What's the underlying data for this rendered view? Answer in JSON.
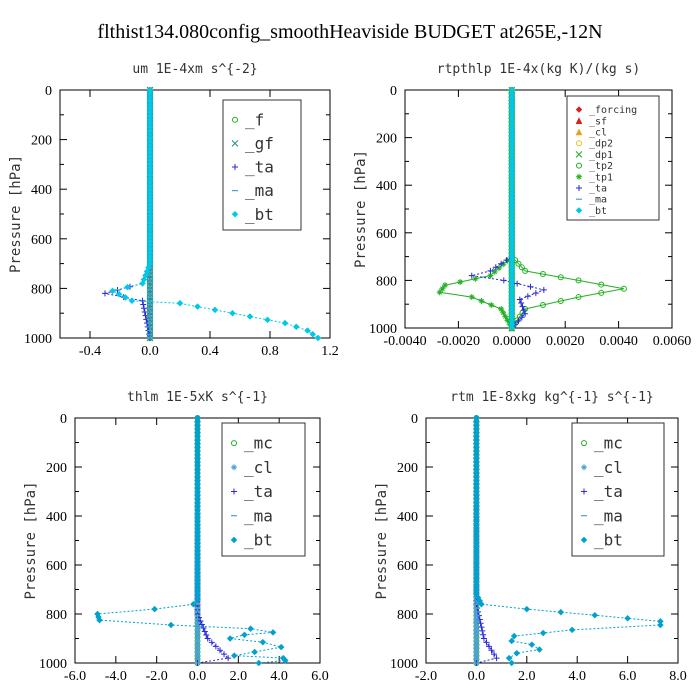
{
  "figure": {
    "title": "flthist134.080config_smoothHeaviside  BUDGET at265E,-12N"
  },
  "chart_data": [
    {
      "type": "line",
      "title": "um   1E-4xm s^{-2}",
      "ylabel": "Pressure [hPa]",
      "xlim": [
        -0.6,
        1.2
      ],
      "ylim": [
        1000,
        0
      ],
      "xticks": [
        -0.4,
        0.0,
        0.4,
        0.8,
        1.2
      ],
      "xtick_labels": [
        "-0.4",
        "0.0",
        "0.4",
        "0.8",
        "1.2"
      ],
      "yticks": [
        0,
        200,
        400,
        600,
        800,
        1000
      ],
      "ytick_labels": [
        "0",
        "200",
        "400",
        "600",
        "800",
        "1000"
      ],
      "legend_position": "top-right",
      "legend_font": 16,
      "series": [
        {
          "name": "_f",
          "color": "#22b022",
          "marker": "circle",
          "style": "solid",
          "points": [
            [
              0.0,
              0
            ],
            [
              0.0,
              1000
            ]
          ]
        },
        {
          "name": "_gf",
          "color": "#1e8f8f",
          "marker": "x",
          "style": "solid",
          "points": [
            [
              0.0,
              0
            ],
            [
              0.0,
              1000
            ]
          ]
        },
        {
          "name": "_ta",
          "color": "#2a2ad8",
          "marker": "plus",
          "style": "dotted",
          "points": [
            [
              0.0,
              0
            ],
            [
              0.0,
              700
            ],
            [
              -0.05,
              780
            ],
            [
              -0.3,
              820
            ],
            [
              -0.05,
              850
            ],
            [
              0.0,
              1000
            ]
          ]
        },
        {
          "name": "_ma",
          "color": "#4aa0d8",
          "marker": "dash",
          "style": "dashed",
          "points": [
            [
              0.0,
              0
            ],
            [
              0.0,
              1000
            ]
          ]
        },
        {
          "name": "_bt",
          "color": "#00c8e8",
          "marker": "diamond",
          "style": "dotted",
          "points": [
            [
              0.0,
              0
            ],
            [
              0.0,
              700
            ],
            [
              -0.05,
              780
            ],
            [
              -0.25,
              810
            ],
            [
              -0.12,
              850
            ],
            [
              0.2,
              860
            ],
            [
              0.55,
              900
            ],
            [
              0.9,
              940
            ],
            [
              1.05,
              970
            ],
            [
              1.12,
              1000
            ]
          ]
        }
      ]
    },
    {
      "type": "line",
      "title": "rtpthlp   1E-4x(kg K)/(kg s)",
      "ylabel": "Pressure [hPa]",
      "xlim": [
        -0.004,
        0.006
      ],
      "ylim": [
        1000,
        0
      ],
      "xticks": [
        -0.004,
        -0.002,
        0.0,
        0.002,
        0.004,
        0.006
      ],
      "xtick_labels": [
        "-0.0040",
        "-0.0020",
        "0.0000",
        "0.0020",
        "0.0040",
        "0.0060"
      ],
      "yticks": [
        0,
        200,
        400,
        600,
        800,
        1000
      ],
      "ytick_labels": [
        "0",
        "200",
        "400",
        "600",
        "800",
        "1000"
      ],
      "legend_position": "top-right",
      "legend_font": 10,
      "series": [
        {
          "name": "_forcing",
          "color": "#d82020",
          "marker": "diamond",
          "style": "solid",
          "points": [
            [
              0.0,
              0
            ],
            [
              0.0,
              1000
            ]
          ]
        },
        {
          "name": "_sf",
          "color": "#d82020",
          "marker": "triangle",
          "style": "solid",
          "points": [
            [
              0.0,
              0
            ],
            [
              0.0,
              1000
            ]
          ]
        },
        {
          "name": "_cl",
          "color": "#e8a020",
          "marker": "triangle",
          "style": "solid",
          "points": [
            [
              0.0,
              0
            ],
            [
              0.0,
              1000
            ]
          ]
        },
        {
          "name": "_dp2",
          "color": "#e8c020",
          "marker": "circle",
          "style": "solid",
          "points": [
            [
              0.0,
              0
            ],
            [
              0.0,
              1000
            ]
          ]
        },
        {
          "name": "_dp1",
          "color": "#22b022",
          "marker": "x",
          "style": "solid",
          "points": [
            [
              0.0,
              0
            ],
            [
              0.0,
              1000
            ]
          ]
        },
        {
          "name": "_tp2",
          "color": "#22b022",
          "marker": "circle",
          "style": "solid",
          "points": [
            [
              0.0,
              0
            ],
            [
              0.0,
              700
            ],
            [
              0.0005,
              760
            ],
            [
              0.0025,
              800
            ],
            [
              0.0042,
              835
            ],
            [
              0.0025,
              870
            ],
            [
              0.0005,
              920
            ],
            [
              0.0,
              1000
            ]
          ]
        },
        {
          "name": "_tp1",
          "color": "#22b022",
          "marker": "star",
          "style": "solid",
          "points": [
            [
              0.0,
              0
            ],
            [
              0.0,
              700
            ],
            [
              -0.0008,
              780
            ],
            [
              -0.0025,
              820
            ],
            [
              -0.0027,
              850
            ],
            [
              -0.0015,
              870
            ],
            [
              -0.0004,
              920
            ],
            [
              0.0,
              1000
            ]
          ]
        },
        {
          "name": "_ta",
          "color": "#2a2ad8",
          "marker": "plus",
          "style": "dotted",
          "points": [
            [
              0.0,
              0
            ],
            [
              0.0,
              700
            ],
            [
              -0.0008,
              760
            ],
            [
              -0.0015,
              780
            ],
            [
              -0.0003,
              800
            ],
            [
              0.0012,
              840
            ],
            [
              0.0003,
              880
            ],
            [
              0.0005,
              940
            ],
            [
              0.0,
              1000
            ]
          ]
        },
        {
          "name": "_ma",
          "color": "#4aa0d8",
          "marker": "dash",
          "style": "dashed",
          "points": [
            [
              0.0,
              0
            ],
            [
              0.0,
              1000
            ]
          ]
        },
        {
          "name": "_bt",
          "color": "#00c8e8",
          "marker": "diamond",
          "style": "solid",
          "points": [
            [
              0.0,
              0
            ],
            [
              0.0,
              1000
            ]
          ]
        }
      ]
    },
    {
      "type": "line",
      "title": "thlm   1E-5xK s^{-1}",
      "ylabel": "Pressure [hPa]",
      "xlim": [
        -6.0,
        6.0
      ],
      "ylim": [
        1000,
        0
      ],
      "xticks": [
        -6.0,
        -4.0,
        -2.0,
        0.0,
        2.0,
        4.0,
        6.0
      ],
      "xtick_labels": [
        "-6.0",
        "-4.0",
        "-2.0",
        "0.0",
        "2.0",
        "4.0",
        "6.0"
      ],
      "yticks": [
        0,
        200,
        400,
        600,
        800,
        1000
      ],
      "ytick_labels": [
        "0",
        "200",
        "400",
        "600",
        "800",
        "1000"
      ],
      "legend_position": "top-right",
      "legend_font": 16,
      "series": [
        {
          "name": "_mc",
          "color": "#22b022",
          "marker": "circle",
          "style": "solid",
          "points": [
            [
              0.0,
              0
            ],
            [
              0.0,
              1000
            ]
          ]
        },
        {
          "name": "_cl",
          "color": "#4aa0d8",
          "marker": "star",
          "style": "solid",
          "points": [
            [
              0.0,
              0
            ],
            [
              0.0,
              1000
            ]
          ]
        },
        {
          "name": "_ta",
          "color": "#2a2ad8",
          "marker": "plus",
          "style": "dotted",
          "points": [
            [
              0.0,
              0
            ],
            [
              0.0,
              750
            ],
            [
              0.0,
              800
            ],
            [
              0.5,
              900
            ],
            [
              1.5,
              980
            ],
            [
              0.0,
              1000
            ]
          ]
        },
        {
          "name": "_ma",
          "color": "#4aa0d8",
          "marker": "dash",
          "style": "dashed",
          "points": [
            [
              0.0,
              0
            ],
            [
              0.0,
              1000
            ]
          ]
        },
        {
          "name": "_bt",
          "color": "#00a0d0",
          "marker": "diamond",
          "style": "dotted",
          "points": [
            [
              0.0,
              0
            ],
            [
              0.0,
              740
            ],
            [
              -0.2,
              760
            ],
            [
              -2.1,
              780
            ],
            [
              -4.9,
              800
            ],
            [
              -4.8,
              825
            ],
            [
              -1.3,
              845
            ],
            [
              2.6,
              860
            ],
            [
              3.7,
              875
            ],
            [
              2.3,
              885
            ],
            [
              1.6,
              900
            ],
            [
              3.2,
              915
            ],
            [
              4.1,
              935
            ],
            [
              2.8,
              955
            ],
            [
              1.8,
              970
            ],
            [
              4.2,
              980
            ],
            [
              4.3,
              990
            ],
            [
              3.0,
              1000
            ]
          ]
        }
      ]
    },
    {
      "type": "line",
      "title": "rtm   1E-8xkg kg^{-1} s^{-1}",
      "ylabel": "Pressure [hPa]",
      "xlim": [
        -2.0,
        8.0
      ],
      "ylim": [
        1000,
        0
      ],
      "xticks": [
        -2.0,
        0.0,
        2.0,
        4.0,
        6.0,
        8.0
      ],
      "xtick_labels": [
        "-2.0",
        "0.0",
        "2.0",
        "4.0",
        "6.0",
        "8.0"
      ],
      "yticks": [
        0,
        200,
        400,
        600,
        800,
        1000
      ],
      "ytick_labels": [
        "0",
        "200",
        "400",
        "600",
        "800",
        "1000"
      ],
      "legend_position": "top-right",
      "legend_font": 16,
      "series": [
        {
          "name": "_mc",
          "color": "#22b022",
          "marker": "circle",
          "style": "solid",
          "points": [
            [
              0.0,
              0
            ],
            [
              0.0,
              1000
            ]
          ]
        },
        {
          "name": "_cl",
          "color": "#4aa0d8",
          "marker": "star",
          "style": "solid",
          "points": [
            [
              0.0,
              0
            ],
            [
              0.0,
              1000
            ]
          ]
        },
        {
          "name": "_ta",
          "color": "#2a2ad8",
          "marker": "plus",
          "style": "dotted",
          "points": [
            [
              0.0,
              0
            ],
            [
              0.0,
              700
            ],
            [
              0.0,
              760
            ],
            [
              0.3,
              900
            ],
            [
              0.8,
              980
            ],
            [
              0.0,
              1000
            ]
          ]
        },
        {
          "name": "_ma",
          "color": "#4aa0d8",
          "marker": "dash",
          "style": "dashed",
          "points": [
            [
              0.0,
              0
            ],
            [
              0.0,
              1000
            ]
          ]
        },
        {
          "name": "_bt",
          "color": "#00a0d0",
          "marker": "diamond",
          "style": "dotted",
          "points": [
            [
              0.0,
              0
            ],
            [
              0.0,
              680
            ],
            [
              0.0,
              720
            ],
            [
              0.2,
              760
            ],
            [
              2.0,
              780
            ],
            [
              4.7,
              805
            ],
            [
              7.3,
              830
            ],
            [
              7.3,
              845
            ],
            [
              3.8,
              865
            ],
            [
              1.5,
              890
            ],
            [
              1.4,
              910
            ],
            [
              2.2,
              925
            ],
            [
              2.5,
              945
            ],
            [
              1.6,
              960
            ],
            [
              1.3,
              980
            ],
            [
              1.4,
              1000
            ]
          ]
        }
      ]
    }
  ]
}
